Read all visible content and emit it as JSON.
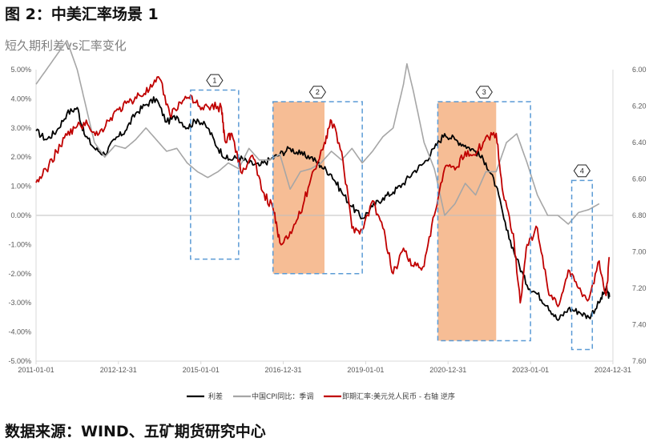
{
  "figure_title": "图 2：中美汇率场景 1",
  "chart_title": "短久期利差vs汇率变化",
  "source": "数据来源：WIND、五矿期货研究中心",
  "colors": {
    "spread": "#000000",
    "cpi": "#a6a6a6",
    "fx": "#c00000",
    "shade": "#f4b183",
    "box": "#5b9bd5",
    "zero": "#bfbfbf"
  },
  "chart_data": {
    "type": "line",
    "x_ticks": [
      "2011-01-01",
      "2012-12-31",
      "2015-01-01",
      "2016-12-31",
      "2019-01-01",
      "2020-12-31",
      "2023-01-01",
      "2024-12-31"
    ],
    "left_axis": {
      "ticks": [
        "5.00%",
        "4.00%",
        "3.00%",
        "2.00%",
        "1.00%",
        "0.00%",
        "-1.00%",
        "-2.00%",
        "-3.00%",
        "-4.00%",
        "-5.00%"
      ],
      "ylim": [
        -5,
        5
      ]
    },
    "right_axis": {
      "ticks": [
        "6.00",
        "6.20",
        "6.40",
        "6.60",
        "6.80",
        "7.00",
        "7.20",
        "7.40",
        "7.60"
      ],
      "ylim": [
        7.6,
        6.0
      ],
      "inverted": true
    },
    "legend": "bottom",
    "series": [
      {
        "name": "利差",
        "axis": "left",
        "color": "#000000",
        "points": [
          [
            "2011-01",
            2.9
          ],
          [
            "2011-04",
            2.6
          ],
          [
            "2011-07",
            2.9
          ],
          [
            "2011-10",
            3.5
          ],
          [
            "2012-01",
            3.7
          ],
          [
            "2012-03",
            2.8
          ],
          [
            "2012-06",
            2.3
          ],
          [
            "2012-09",
            2.1
          ],
          [
            "2012-12",
            2.6
          ],
          [
            "2013-03",
            2.9
          ],
          [
            "2013-06",
            3.5
          ],
          [
            "2013-09",
            3.8
          ],
          [
            "2013-12",
            4.0
          ],
          [
            "2014-03",
            3.2
          ],
          [
            "2014-06",
            3.4
          ],
          [
            "2014-09",
            3.0
          ],
          [
            "2014-12",
            3.3
          ],
          [
            "2015-03",
            3.0
          ],
          [
            "2015-06",
            2.3
          ],
          [
            "2015-09",
            1.9
          ],
          [
            "2015-12",
            2.0
          ],
          [
            "2016-03",
            1.8
          ],
          [
            "2016-06",
            1.7
          ],
          [
            "2016-09",
            1.9
          ],
          [
            "2016-12",
            2.1
          ],
          [
            "2017-03",
            2.3
          ],
          [
            "2017-06",
            2.1
          ],
          [
            "2017-09",
            2.0
          ],
          [
            "2017-12",
            1.7
          ],
          [
            "2018-03",
            1.4
          ],
          [
            "2018-06",
            0.8
          ],
          [
            "2018-09",
            0.3
          ],
          [
            "2018-12",
            -0.1
          ],
          [
            "2019-03",
            0.3
          ],
          [
            "2019-06",
            0.6
          ],
          [
            "2019-09",
            0.8
          ],
          [
            "2019-12",
            1.1
          ],
          [
            "2020-03",
            1.5
          ],
          [
            "2020-06",
            1.8
          ],
          [
            "2020-09",
            2.3
          ],
          [
            "2020-12",
            2.8
          ],
          [
            "2021-03",
            2.6
          ],
          [
            "2021-06",
            2.4
          ],
          [
            "2021-09",
            2.2
          ],
          [
            "2021-12",
            1.8
          ],
          [
            "2022-03",
            1.0
          ],
          [
            "2022-06",
            -0.5
          ],
          [
            "2022-09",
            -1.5
          ],
          [
            "2022-12",
            -2.4
          ],
          [
            "2023-03",
            -2.7
          ],
          [
            "2023-06",
            -3.1
          ],
          [
            "2023-09",
            -3.6
          ],
          [
            "2023-12",
            -3.2
          ],
          [
            "2024-03",
            -3.3
          ],
          [
            "2024-06",
            -3.5
          ],
          [
            "2024-09",
            -3.0
          ],
          [
            "2024-11",
            -2.5
          ],
          [
            "2024-12",
            -2.8
          ]
        ]
      },
      {
        "name": "中国CPI同比：季调",
        "axis": "left",
        "color": "#a6a6a6",
        "points": [
          [
            "2011-01",
            4.5
          ],
          [
            "2011-04",
            5.0
          ],
          [
            "2011-07",
            5.5
          ],
          [
            "2011-10",
            6.0
          ],
          [
            "2012-01",
            5.0
          ],
          [
            "2012-03",
            4.0
          ],
          [
            "2012-06",
            2.5
          ],
          [
            "2012-09",
            2.0
          ],
          [
            "2012-12",
            2.4
          ],
          [
            "2013-03",
            2.3
          ],
          [
            "2013-06",
            2.6
          ],
          [
            "2013-09",
            3.0
          ],
          [
            "2013-12",
            2.6
          ],
          [
            "2014-03",
            2.2
          ],
          [
            "2014-06",
            2.3
          ],
          [
            "2014-09",
            1.8
          ],
          [
            "2014-12",
            1.5
          ],
          [
            "2015-03",
            1.3
          ],
          [
            "2015-06",
            1.5
          ],
          [
            "2015-09",
            1.8
          ],
          [
            "2015-12",
            1.6
          ],
          [
            "2016-03",
            2.3
          ],
          [
            "2016-06",
            1.9
          ],
          [
            "2016-09",
            1.9
          ],
          [
            "2016-12",
            2.1
          ],
          [
            "2017-03",
            0.9
          ],
          [
            "2017-06",
            1.5
          ],
          [
            "2017-09",
            1.6
          ],
          [
            "2017-12",
            1.8
          ],
          [
            "2018-03",
            2.2
          ],
          [
            "2018-06",
            1.9
          ],
          [
            "2018-09",
            2.3
          ],
          [
            "2018-12",
            1.8
          ],
          [
            "2019-03",
            2.2
          ],
          [
            "2019-06",
            2.7
          ],
          [
            "2019-09",
            3.0
          ],
          [
            "2019-12",
            4.5
          ],
          [
            "2020-01",
            5.2
          ],
          [
            "2020-03",
            4.2
          ],
          [
            "2020-06",
            2.5
          ],
          [
            "2020-09",
            1.6
          ],
          [
            "2020-12",
            0.0
          ],
          [
            "2021-03",
            0.4
          ],
          [
            "2021-06",
            1.1
          ],
          [
            "2021-09",
            0.7
          ],
          [
            "2021-12",
            1.5
          ],
          [
            "2022-03",
            1.5
          ],
          [
            "2022-06",
            2.5
          ],
          [
            "2022-09",
            2.8
          ],
          [
            "2022-12",
            1.8
          ],
          [
            "2023-03",
            0.7
          ],
          [
            "2023-06",
            0.0
          ],
          [
            "2023-09",
            0.0
          ],
          [
            "2023-12",
            -0.3
          ],
          [
            "2024-03",
            0.1
          ],
          [
            "2024-06",
            0.2
          ],
          [
            "2024-09",
            0.4
          ]
        ]
      },
      {
        "name": "即期汇率:美元兑人民币 - 右轴 逆序",
        "axis": "right",
        "color": "#c00000",
        "points": [
          [
            "2011-01",
            6.62
          ],
          [
            "2011-04",
            6.55
          ],
          [
            "2011-07",
            6.45
          ],
          [
            "2011-10",
            6.36
          ],
          [
            "2012-01",
            6.31
          ],
          [
            "2012-04",
            6.3
          ],
          [
            "2012-07",
            6.36
          ],
          [
            "2012-10",
            6.28
          ],
          [
            "2013-01",
            6.22
          ],
          [
            "2013-04",
            6.18
          ],
          [
            "2013-07",
            6.14
          ],
          [
            "2013-10",
            6.11
          ],
          [
            "2014-01",
            6.05
          ],
          [
            "2014-04",
            6.25
          ],
          [
            "2014-07",
            6.18
          ],
          [
            "2014-10",
            6.14
          ],
          [
            "2015-01",
            6.22
          ],
          [
            "2015-04",
            6.2
          ],
          [
            "2015-07",
            6.21
          ],
          [
            "2015-08",
            6.39
          ],
          [
            "2015-10",
            6.35
          ],
          [
            "2016-01",
            6.57
          ],
          [
            "2016-04",
            6.47
          ],
          [
            "2016-07",
            6.67
          ],
          [
            "2016-10",
            6.76
          ],
          [
            "2016-12",
            6.95
          ],
          [
            "2017-03",
            6.89
          ],
          [
            "2017-06",
            6.79
          ],
          [
            "2017-09",
            6.6
          ],
          [
            "2018-01",
            6.4
          ],
          [
            "2018-03",
            6.28
          ],
          [
            "2018-06",
            6.45
          ],
          [
            "2018-09",
            6.87
          ],
          [
            "2018-12",
            6.88
          ],
          [
            "2019-03",
            6.72
          ],
          [
            "2019-06",
            6.87
          ],
          [
            "2019-09",
            7.12
          ],
          [
            "2019-12",
            6.98
          ],
          [
            "2020-03",
            7.08
          ],
          [
            "2020-06",
            7.08
          ],
          [
            "2020-09",
            6.8
          ],
          [
            "2020-12",
            6.54
          ],
          [
            "2021-03",
            6.55
          ],
          [
            "2021-06",
            6.45
          ],
          [
            "2021-09",
            6.47
          ],
          [
            "2021-12",
            6.37
          ],
          [
            "2022-03",
            6.35
          ],
          [
            "2022-05",
            6.68
          ],
          [
            "2022-08",
            6.9
          ],
          [
            "2022-10",
            7.28
          ],
          [
            "2022-12",
            6.96
          ],
          [
            "2023-03",
            6.87
          ],
          [
            "2023-06",
            7.2
          ],
          [
            "2023-09",
            7.3
          ],
          [
            "2023-12",
            7.1
          ],
          [
            "2024-03",
            7.2
          ],
          [
            "2024-06",
            7.26
          ],
          [
            "2024-09",
            7.05
          ],
          [
            "2024-11",
            7.24
          ],
          [
            "2024-12",
            7.03
          ]
        ]
      }
    ],
    "shaded_periods": [
      {
        "start": "2016-10",
        "end": "2018-01"
      },
      {
        "start": "2020-10",
        "end": "2022-03"
      }
    ],
    "annotation_boxes": [
      {
        "label": "1",
        "start": "2014-10",
        "end": "2015-12",
        "top": 4.3,
        "bottom": -1.5
      },
      {
        "label": "2",
        "start": "2016-10",
        "end": "2018-12",
        "top": 3.9,
        "bottom": -2.0
      },
      {
        "label": "3",
        "start": "2020-10",
        "end": "2023-01",
        "top": 3.9,
        "bottom": -4.3
      },
      {
        "label": "4",
        "start": "2024-01",
        "end": "2024-07",
        "top": 1.2,
        "bottom": -4.6
      }
    ]
  }
}
